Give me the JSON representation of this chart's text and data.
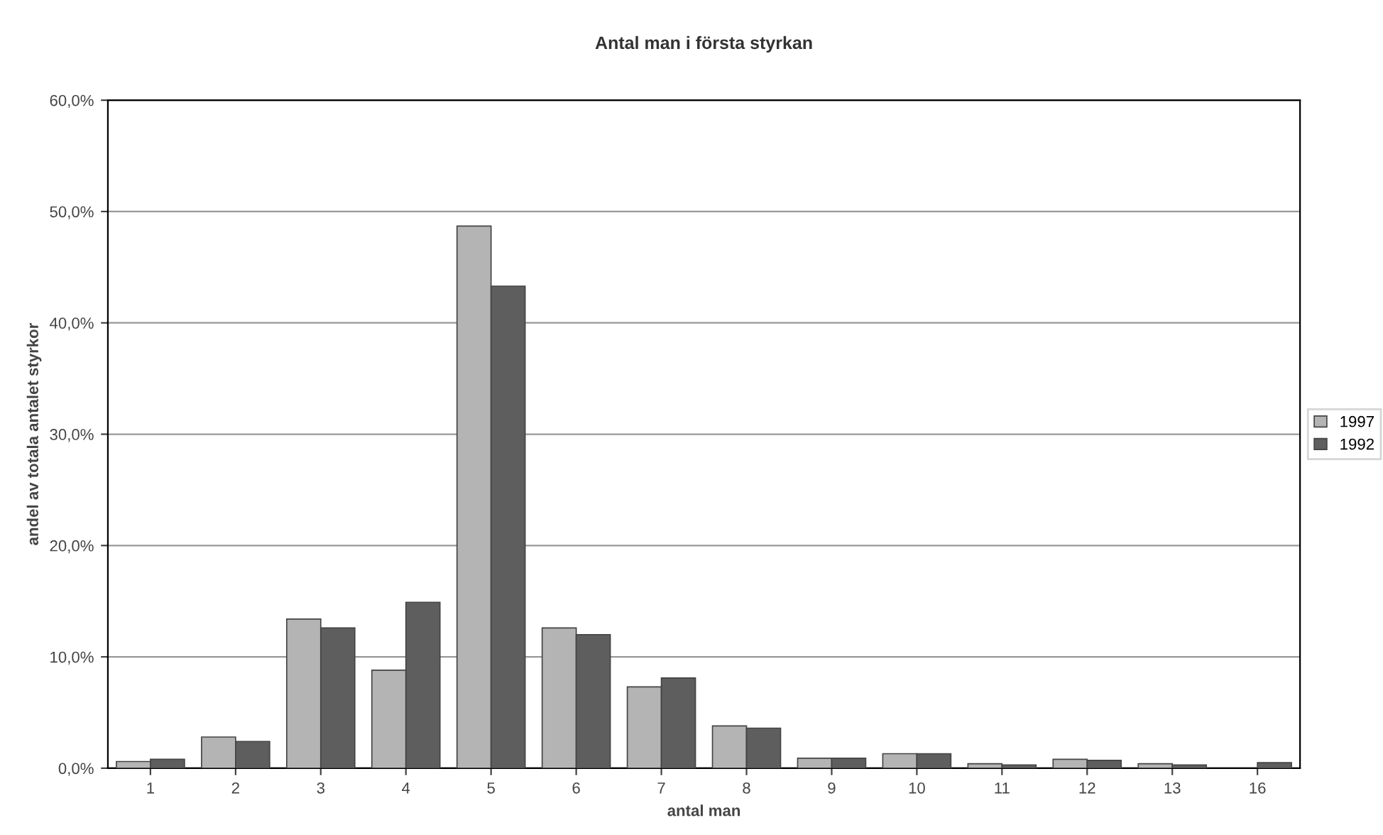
{
  "chart_data": {
    "type": "bar",
    "title": "Antal man i första styrkan",
    "xlabel": "antal man",
    "ylabel": "andel av totala antalet styrkor",
    "categories": [
      "1",
      "2",
      "3",
      "4",
      "5",
      "6",
      "7",
      "8",
      "9",
      "10",
      "11",
      "12",
      "13",
      "16"
    ],
    "series": [
      {
        "name": "1997",
        "color": "#b4b4b4",
        "values": [
          0.6,
          2.8,
          13.4,
          8.8,
          48.7,
          12.6,
          7.3,
          3.8,
          0.9,
          1.3,
          0.4,
          0.8,
          0.4,
          null
        ]
      },
      {
        "name": "1992",
        "color": "#5e5e5e",
        "values": [
          0.8,
          2.4,
          12.6,
          14.9,
          43.3,
          12.0,
          8.1,
          3.6,
          0.9,
          1.3,
          0.3,
          0.7,
          0.3,
          0.5
        ]
      }
    ],
    "ylim": [
      0,
      60
    ],
    "yticks": [
      {
        "value": 0,
        "label": "0,0%"
      },
      {
        "value": 10,
        "label": "10,0%"
      },
      {
        "value": 20,
        "label": "20,0%"
      },
      {
        "value": 30,
        "label": "30,0%"
      },
      {
        "value": 40,
        "label": "40,0%"
      },
      {
        "value": 50,
        "label": "50,0%"
      },
      {
        "value": 60,
        "label": "60,0%"
      }
    ],
    "grid": "y",
    "legend": "right"
  }
}
